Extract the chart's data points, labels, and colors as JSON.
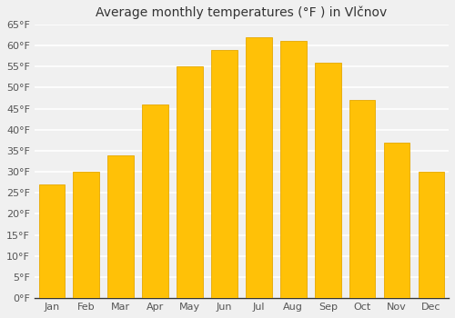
{
  "title": "Average monthly temperatures (°F ) in Vlčnov",
  "months": [
    "Jan",
    "Feb",
    "Mar",
    "Apr",
    "May",
    "Jun",
    "Jul",
    "Aug",
    "Sep",
    "Oct",
    "Nov",
    "Dec"
  ],
  "values": [
    27,
    30,
    34,
    46,
    55,
    59,
    62,
    61,
    56,
    47,
    37,
    30
  ],
  "bar_color": "#FFC107",
  "bar_edge_color": "#E6A800",
  "ylim": [
    0,
    65
  ],
  "yticks": [
    0,
    5,
    10,
    15,
    20,
    25,
    30,
    35,
    40,
    45,
    50,
    55,
    60,
    65
  ],
  "ytick_labels": [
    "0°F",
    "5°F",
    "10°F",
    "15°F",
    "20°F",
    "25°F",
    "30°F",
    "35°F",
    "40°F",
    "45°F",
    "50°F",
    "55°F",
    "60°F",
    "65°F"
  ],
  "background_color": "#f0f0f0",
  "grid_color": "#ffffff",
  "title_fontsize": 10,
  "tick_fontsize": 8,
  "bar_width": 0.75
}
